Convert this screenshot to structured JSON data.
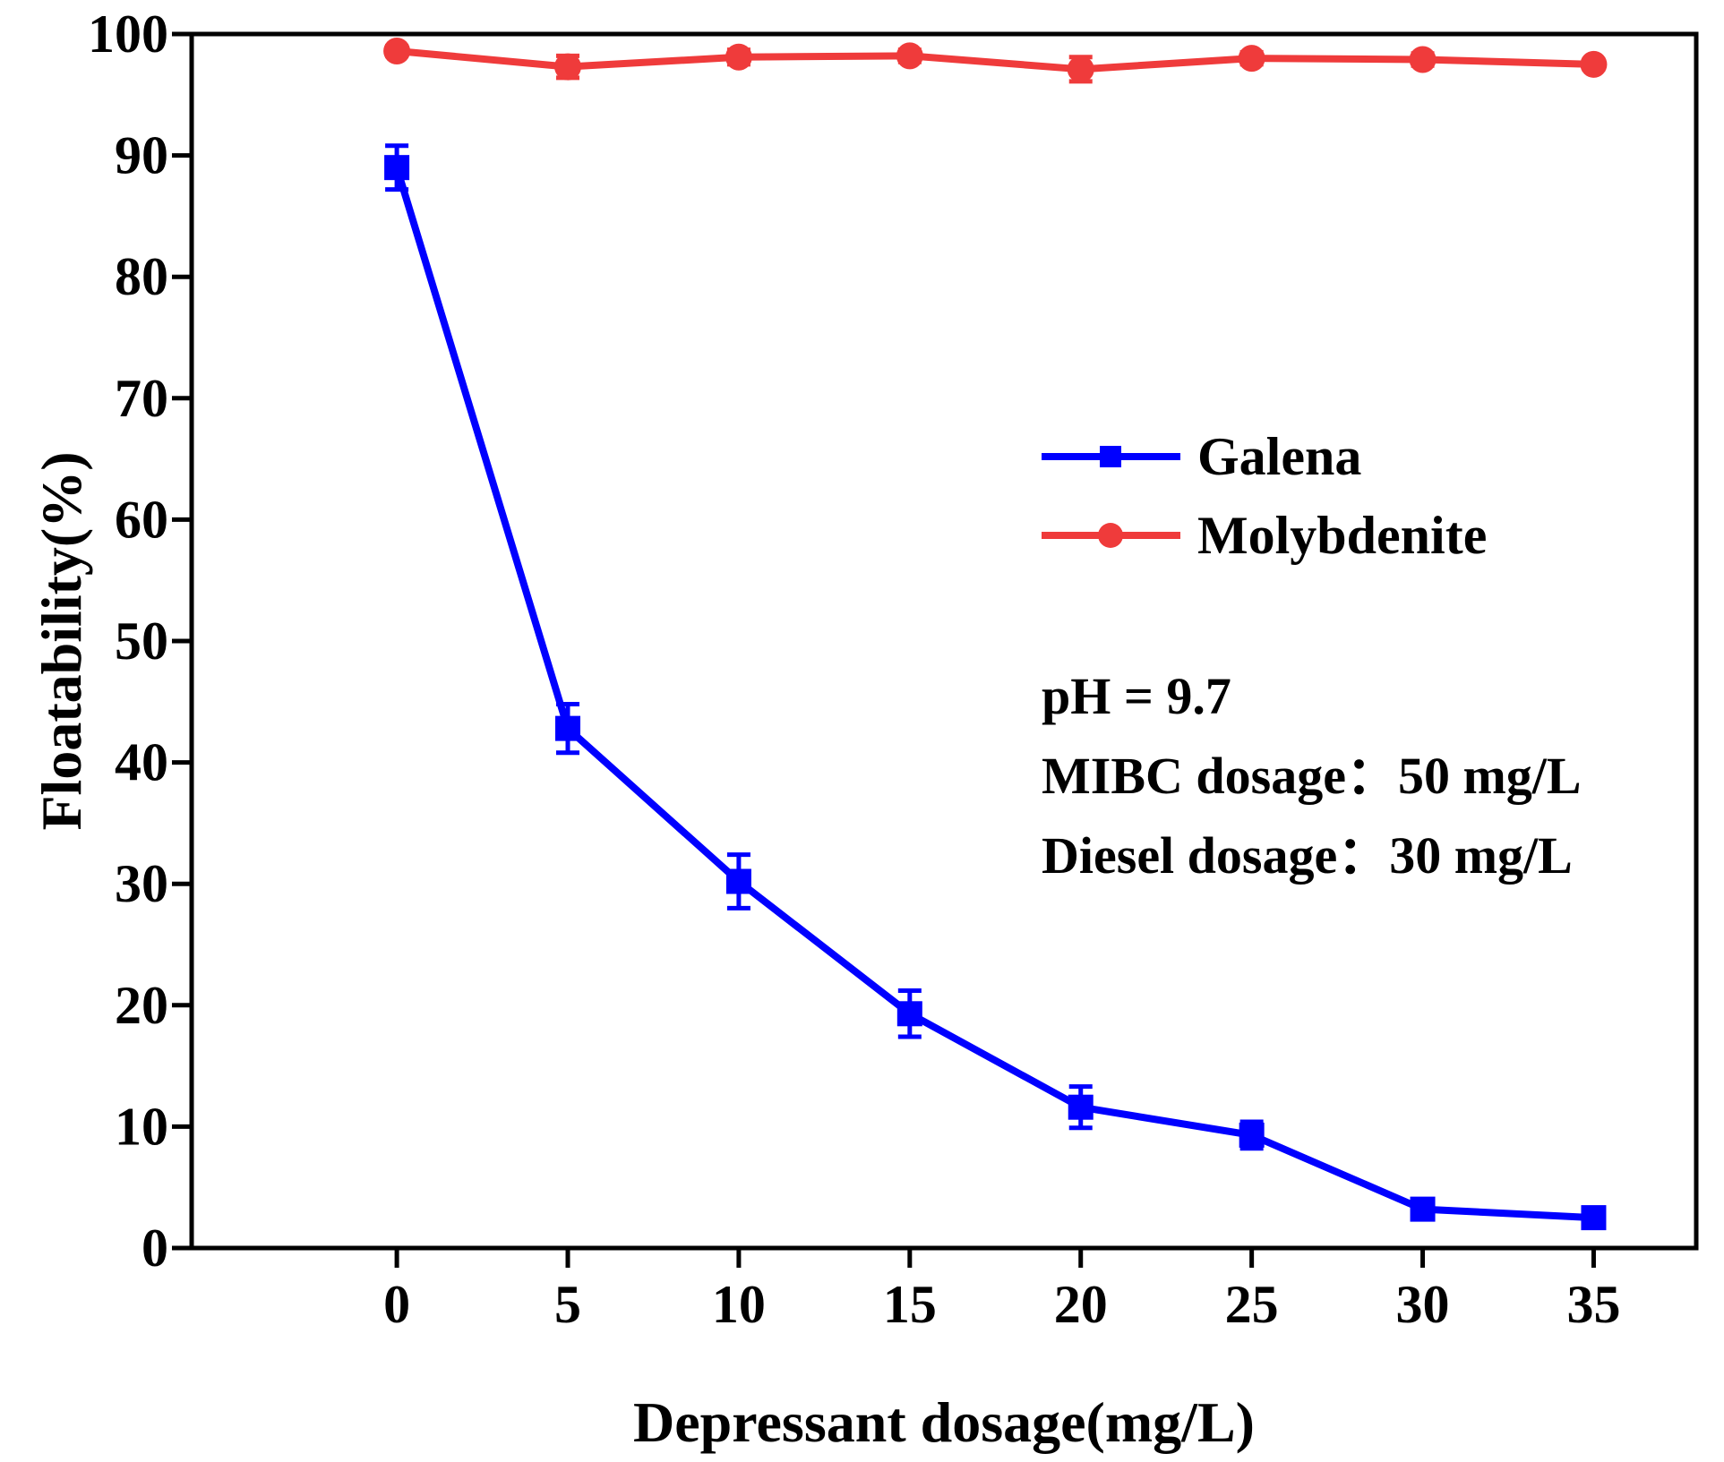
{
  "chart_data": {
    "type": "line",
    "title": "",
    "xlabel": "Depressant dosage(mg/L)",
    "ylabel": "Floatability(%)",
    "xlim": [
      -6,
      38
    ],
    "ylim": [
      0,
      100
    ],
    "x_ticks": [
      0,
      5,
      10,
      15,
      20,
      25,
      30,
      35
    ],
    "y_ticks": [
      0,
      10,
      20,
      30,
      40,
      50,
      60,
      70,
      80,
      90,
      100
    ],
    "x_tick_labels": [
      "0",
      "5",
      "10",
      "15",
      "20",
      "25",
      "30",
      "35"
    ],
    "y_tick_labels": [
      "0",
      "10",
      "20",
      "30",
      "40",
      "50",
      "60",
      "70",
      "80",
      "90",
      "100"
    ],
    "x": [
      0,
      5,
      10,
      15,
      20,
      25,
      30,
      35
    ],
    "series": [
      {
        "name": "Galena",
        "color": "#0000ff",
        "marker": "square",
        "values": [
          89.0,
          42.8,
          30.2,
          19.3,
          11.6,
          9.3,
          3.2,
          2.5
        ],
        "errors": [
          1.8,
          2.0,
          2.2,
          1.9,
          1.7,
          1.1,
          0.6,
          0.5
        ]
      },
      {
        "name": "Molybdenite",
        "color": "#ef3b3b",
        "marker": "circle",
        "values": [
          98.6,
          97.3,
          98.1,
          98.2,
          97.1,
          98.0,
          97.9,
          97.5
        ],
        "errors": [
          0.4,
          0.9,
          0.6,
          0.5,
          1.0,
          0.5,
          0.5,
          0.4
        ]
      }
    ],
    "legend_position": "right-middle",
    "annotations": [
      "pH = 9.7",
      "MIBC dosage：50 mg/L",
      "Diesel dosage：30 mg/L"
    ]
  }
}
